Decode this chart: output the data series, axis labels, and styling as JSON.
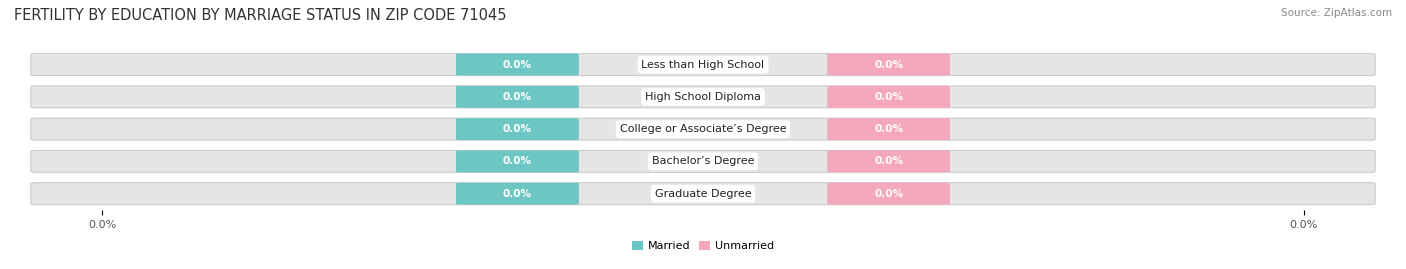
{
  "title": "FERTILITY BY EDUCATION BY MARRIAGE STATUS IN ZIP CODE 71045",
  "source": "Source: ZipAtlas.com",
  "categories": [
    "Less than High School",
    "High School Diploma",
    "College or Associate’s Degree",
    "Bachelor’s Degree",
    "Graduate Degree"
  ],
  "married_values": [
    "0.0%",
    "0.0%",
    "0.0%",
    "0.0%",
    "0.0%"
  ],
  "unmarried_values": [
    "0.0%",
    "0.0%",
    "0.0%",
    "0.0%",
    "0.0%"
  ],
  "married_color": "#6ec6c4",
  "unmarried_color": "#f4a8bc",
  "bar_bg_color": "#e5e5e5",
  "background_color": "#ffffff",
  "title_fontsize": 10.5,
  "label_fontsize": 8,
  "value_fontsize": 7.5,
  "tick_fontsize": 8,
  "source_fontsize": 7.5,
  "left_tick": "0.0%",
  "right_tick": "0.0%"
}
